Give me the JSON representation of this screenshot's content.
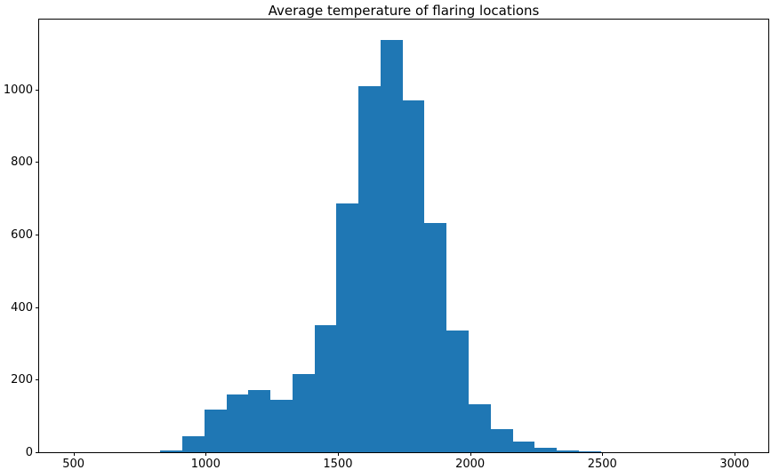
{
  "chart_data": {
    "type": "bar",
    "subtype": "histogram",
    "title": "Average temperature of flaring locations",
    "xlabel": "",
    "ylabel": "",
    "grid": false,
    "legend": null,
    "bar_color": "#1f77b4",
    "axis_color": "#000000",
    "background_color": "#ffffff",
    "xlim": [
      370,
      3128
    ],
    "ylim": [
      0,
      1193
    ],
    "xticks": [
      500,
      1000,
      1500,
      2000,
      2500,
      3000
    ],
    "yticks": [
      0,
      200,
      400,
      600,
      800,
      1000
    ],
    "bin_edges": [
      829,
      912,
      995,
      1079,
      1162,
      1245,
      1329,
      1412,
      1495,
      1578,
      1662,
      1745,
      1828,
      1912,
      1995,
      2078,
      2162,
      2245,
      2328,
      2411,
      2495
    ],
    "counts": [
      5,
      45,
      117,
      160,
      172,
      145,
      216,
      350,
      686,
      1010,
      1136,
      970,
      632,
      335,
      133,
      64,
      30,
      12,
      6,
      2
    ]
  }
}
